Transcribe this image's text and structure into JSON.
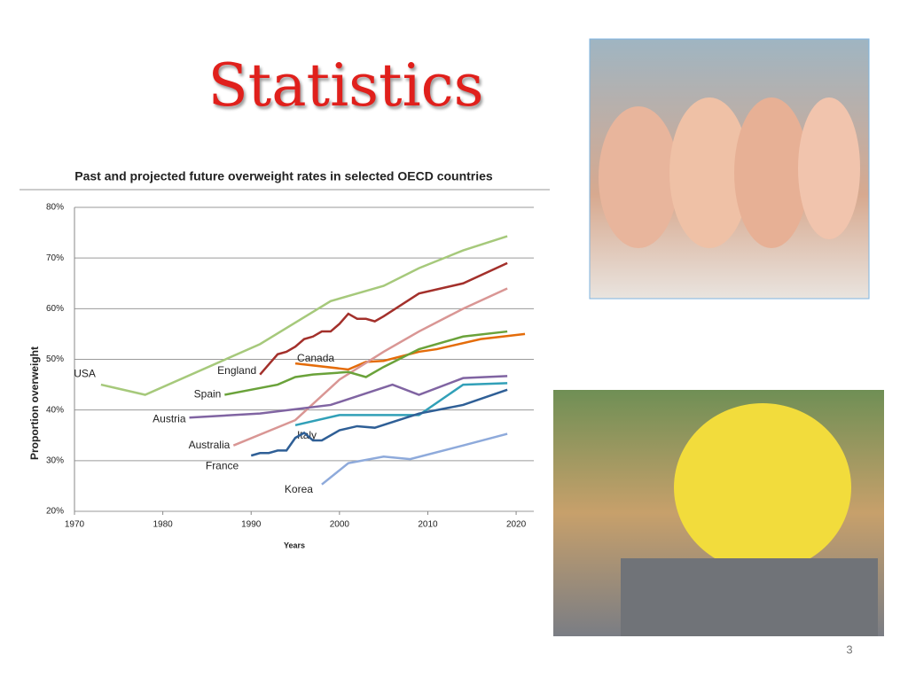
{
  "slide": {
    "title": "Statistics",
    "page_number": 3
  },
  "chart_data": {
    "type": "line",
    "title": "Past and projected future overweight rates in selected OECD countries",
    "x_label": "Years",
    "y_label": "Proportion overweight",
    "xlim": [
      1970,
      2022
    ],
    "xticks": [
      1970,
      1980,
      1990,
      2000,
      2010,
      2020
    ],
    "ylim": [
      20,
      80
    ],
    "yticks": [
      {
        "value": 20,
        "label": "20%"
      },
      {
        "value": 30,
        "label": "30%"
      },
      {
        "value": 40,
        "label": "40%"
      },
      {
        "value": 50,
        "label": "50%"
      },
      {
        "value": 60,
        "label": "60%"
      },
      {
        "value": 70,
        "label": "70%"
      },
      {
        "value": 80,
        "label": "80%"
      }
    ],
    "grid": true,
    "series": [
      {
        "name": "USA",
        "color": "#a6c97b",
        "x": [
          1973,
          1978,
          1991,
          1999,
          2003,
          2005,
          2009,
          2014,
          2019
        ],
        "values": [
          45,
          43,
          53,
          61.5,
          63.5,
          64.5,
          68,
          71.5,
          74.3
        ]
      },
      {
        "name": "England",
        "color": "#a3302b",
        "x": [
          1991,
          1992,
          1993,
          1994,
          1995,
          1996,
          1997,
          1998,
          1999,
          2000,
          2001,
          2002,
          2003,
          2004,
          2005,
          2009,
          2014,
          2019
        ],
        "values": [
          47,
          49,
          51,
          51.5,
          52.5,
          54,
          54.5,
          55.5,
          55.5,
          57,
          59,
          58,
          58,
          57.5,
          58.5,
          63,
          65,
          69
        ]
      },
      {
        "name": "Canada",
        "color": "#e46c0a",
        "x": [
          1995,
          2001,
          2003,
          2005,
          2009,
          2011,
          2016,
          2021
        ],
        "values": [
          49.2,
          48,
          49.5,
          49.7,
          51.5,
          52,
          54,
          55
        ]
      },
      {
        "name": "Australia",
        "color": "#d99694",
        "x": [
          1988,
          1995,
          2000,
          2005,
          2009,
          2014,
          2019
        ],
        "values": [
          33,
          38,
          46,
          51.5,
          55.5,
          60,
          64
        ]
      },
      {
        "name": "Spain",
        "color": "#6aa23a",
        "x": [
          1987,
          1993,
          1995,
          1997,
          2001,
          2003,
          2005,
          2009,
          2014,
          2019
        ],
        "values": [
          43,
          45,
          46.5,
          47,
          47.5,
          46.5,
          48.5,
          52,
          54.5,
          55.5
        ]
      },
      {
        "name": "Austria",
        "color": "#8064a2",
        "x": [
          1983,
          1991,
          1999,
          2006,
          2009,
          2014,
          2019
        ],
        "values": [
          38.5,
          39.3,
          41,
          45,
          43,
          46.3,
          46.7
        ]
      },
      {
        "name": "Italy",
        "color": "#31a0b8",
        "x": [
          1995,
          2000,
          2005,
          2009,
          2014,
          2019
        ],
        "values": [
          37,
          39,
          39,
          39,
          45,
          45.3
        ]
      },
      {
        "name": "France",
        "color": "#2f5f96",
        "x": [
          1990,
          1991,
          1992,
          1993,
          1994,
          1995,
          1996,
          1997,
          1998,
          2000,
          2002,
          2004,
          2009,
          2014,
          2019
        ],
        "values": [
          31,
          31.5,
          31.5,
          32,
          32,
          34.5,
          35.5,
          34,
          34,
          36,
          36.8,
          36.5,
          39.3,
          41,
          44
        ]
      },
      {
        "name": "Korea",
        "color": "#8eaadb",
        "x": [
          1998,
          2001,
          2005,
          2008,
          2014,
          2019
        ],
        "values": [
          25.3,
          29.5,
          30.8,
          30.3,
          33,
          35.3
        ]
      }
    ]
  }
}
